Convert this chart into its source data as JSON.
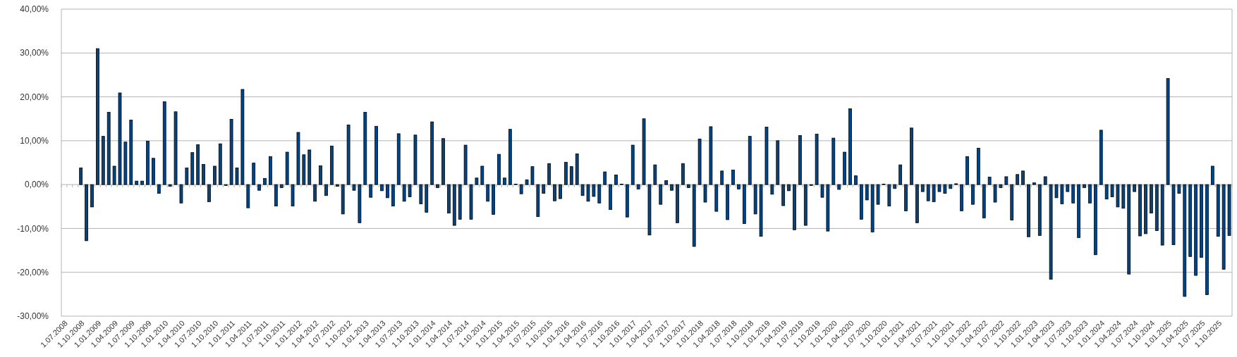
{
  "chart_data": {
    "type": "bar",
    "categories": [
      "1.07.2008",
      null,
      null,
      "1.10.2008",
      null,
      null,
      "1.01.2009",
      null,
      null,
      "1.04.2009",
      null,
      null,
      "1.07.2009",
      null,
      null,
      "1.10.2009",
      null,
      null,
      "1.01.2010",
      null,
      null,
      "1.04.2010",
      null,
      null,
      "1.07.2010",
      null,
      null,
      "1.10.2010",
      null,
      null,
      "1.01.2011",
      null,
      null,
      "1.04.2011",
      null,
      null,
      "1.07.2011",
      null,
      null,
      "1.10.2011",
      null,
      null,
      "1.01.2012",
      null,
      null,
      "1.04.2012",
      null,
      null,
      "1.07.2012",
      null,
      null,
      "1.10.2012",
      null,
      null,
      "1.01.2013",
      null,
      null,
      "1.04.2013",
      null,
      null,
      "1.07.2013",
      null,
      null,
      "1.10.2013",
      null,
      null,
      "1.01.2014",
      null,
      null,
      "1.04.2014",
      null,
      null,
      "1.07.2014",
      null,
      null,
      "1.10.2014",
      null,
      null,
      "1.01.2015",
      null,
      null,
      "1.04.2015",
      null,
      null,
      "1.07.2015",
      null,
      null,
      "1.10.2015",
      null,
      null,
      "1.01.2016",
      null,
      null,
      "1.04.2016",
      null,
      null,
      "1.07.2016",
      null,
      null,
      "1.10.2016",
      null,
      null,
      "1.01.2017",
      null,
      null,
      "1.04.2017",
      null,
      null,
      "1.07.2017",
      null,
      null,
      "1.10.2017",
      null,
      null,
      "1.01.2018",
      null,
      null,
      "1.04.2018",
      null,
      null,
      "1.07.2018",
      null,
      null,
      "1.10.2018",
      null,
      null,
      "1.01.2019",
      null,
      null,
      "1.04.2019",
      null,
      null,
      "1.07.2019",
      null,
      null,
      "1.10.2019",
      null,
      null,
      "1.01.2020",
      null,
      null,
      "1.04.2020",
      null,
      null,
      "1.07.2020",
      null,
      null,
      "1.10.2020",
      null,
      null,
      "1.01.2021",
      null,
      null,
      "1.04.2021",
      null,
      null,
      "1.07.2021",
      null,
      null,
      "1.10.2021",
      null,
      null,
      "1.01.2022",
      null,
      null,
      "1.04.2022",
      null,
      null,
      "1.07.2022",
      null,
      null,
      "1.10.2022",
      null,
      null,
      "1.01.2023",
      null,
      null,
      "1.04.2023",
      null,
      null,
      "1.07.2023",
      null,
      null,
      "1.10.2023",
      null,
      null,
      "1.01.2024",
      null,
      null,
      "1.04.2024",
      null,
      null,
      "1.07.2024",
      null,
      null,
      "1.10.2024",
      null,
      null,
      "1.01.2025",
      null,
      null,
      "1.04.2025",
      null,
      null,
      "1.07.2025",
      null,
      null,
      "1.10.2025",
      null,
      null
    ],
    "series": [
      {
        "color": "#004586",
        "values": [
          null,
          null,
          null,
          3.8,
          -12.8,
          -5.1,
          31,
          11,
          16.5,
          4.2,
          20.9,
          9.7,
          14.7,
          0.8,
          0.8,
          9.9,
          6,
          -2,
          18.9,
          -0.4,
          16.6,
          -4.2,
          3.8,
          7.3,
          9.1,
          4.6,
          -3.9,
          4.2,
          9.3,
          -0.2,
          14.9,
          3.8,
          21.7,
          -5.3,
          4.9,
          -1.3,
          1.4,
          6.4,
          -4.9,
          -0.7,
          7.4,
          -4.9,
          11.9,
          6.8,
          7.9,
          -3.8,
          4.3,
          -2.5,
          8.8,
          -0.4,
          -6.7,
          13.6,
          -1.3,
          -8.7,
          16.5,
          -2.9,
          13.3,
          -1.4,
          -3,
          -4.9,
          11.6,
          -3.8,
          -2.8,
          11.3,
          -4.4,
          -6.3,
          14.3,
          -0.7,
          10.5,
          -6.5,
          -9.3,
          -7.9,
          9,
          -7.9,
          1.5,
          4.2,
          -3.8,
          -6.8,
          6.9,
          1.5,
          12.6,
          0.1,
          -2.1,
          1.1,
          4.1,
          -7.3,
          -2,
          4.8,
          -3.7,
          -3.2,
          5.1,
          4.1,
          7,
          -2.5,
          -3.8,
          -2.7,
          -4.2,
          2.9,
          -5.7,
          2.2,
          0.1,
          -7.4,
          9,
          -1,
          15,
          -11.5,
          4.5,
          -4.5,
          0.9,
          -1.3,
          -8.7,
          4.8,
          -0.7,
          -14.1,
          10.4,
          -4,
          13.2,
          -6.1,
          3.1,
          -8,
          3.3,
          -1,
          -8.9,
          11,
          -6.7,
          -11.8,
          13.1,
          -2.2,
          10,
          -4.8,
          -1.4,
          -10.3,
          11.2,
          -9.3,
          -0.2,
          11.5,
          -2.9,
          -10.6,
          10.6,
          -1.1,
          7.4,
          17.3,
          2,
          -7.9,
          -3.5,
          -10.8,
          -4.5,
          0.1,
          -4.9,
          -0.9,
          4.5,
          -6,
          12.9,
          -8.7,
          -1.6,
          -3.7,
          -3.9,
          -1.6,
          -2,
          -0.9,
          0.2,
          -6,
          6.4,
          -4.5,
          8.3,
          -7.6,
          1.7,
          -4,
          -0.7,
          1.8,
          -8.1,
          2.3,
          3.1,
          -11.9,
          0.4,
          -11.6,
          1.8,
          -21.6,
          -3,
          -4.4,
          -1.6,
          -4.2,
          -12.1,
          -0.7,
          -4.2,
          -16,
          12.4,
          -3.3,
          -2.8,
          -5.1,
          -5.4,
          -20.4,
          -1.6,
          -11.7,
          -11.2,
          -6.5,
          -10.5,
          -13.8,
          24.2,
          -13.7,
          -2,
          -25.5,
          -16.4,
          -20.7,
          -16.6,
          -25.1,
          4.2,
          -11.8,
          -19.3,
          -11.6
        ]
      }
    ],
    "ylim": [
      -30,
      40
    ],
    "yticks": [
      {
        "value": -30,
        "label": "-30,00%"
      },
      {
        "value": -20,
        "label": "-20,00%"
      },
      {
        "value": -10,
        "label": "-10,00%"
      },
      {
        "value": 0,
        "label": "0,00%"
      },
      {
        "value": 10,
        "label": "10,00%"
      },
      {
        "value": 20,
        "label": "20,00%"
      },
      {
        "value": 30,
        "label": "30,00%"
      },
      {
        "value": 40,
        "label": "40,00%"
      }
    ],
    "grid": "y"
  }
}
